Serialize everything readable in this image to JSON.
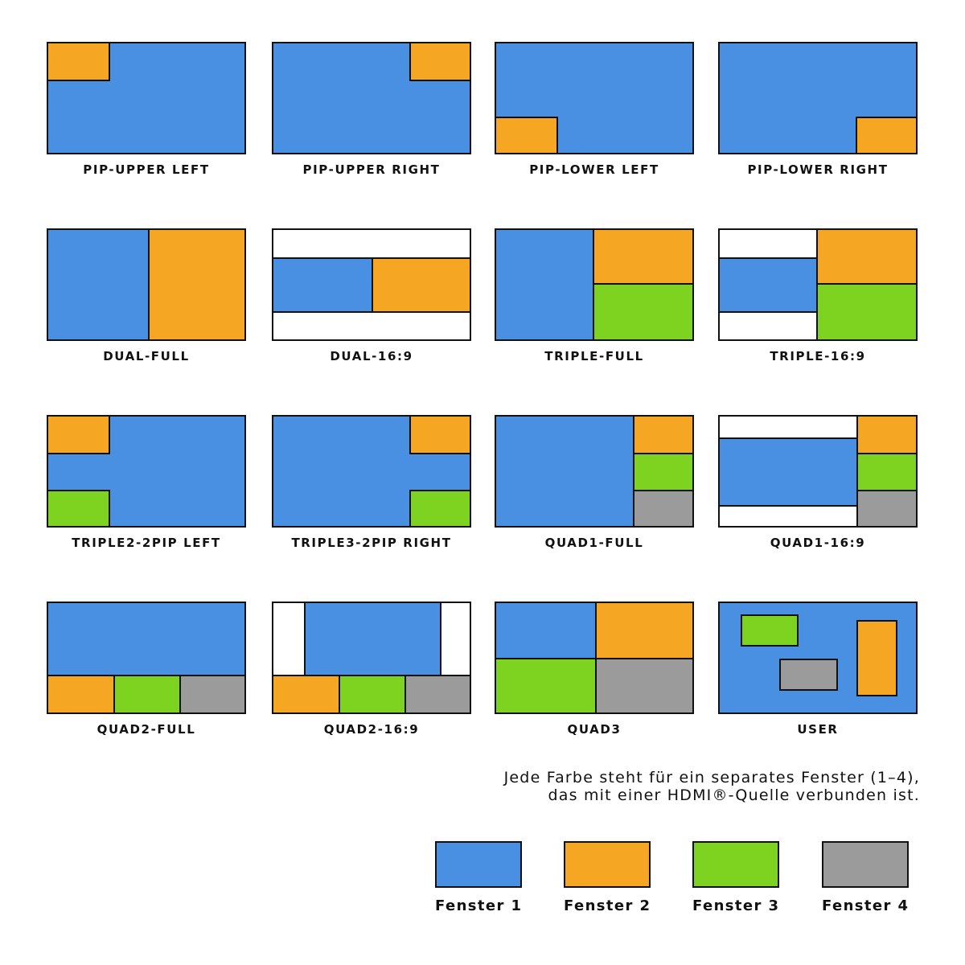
{
  "colors": {
    "window1": "#4a90e2",
    "window2": "#f5a623",
    "window3": "#7ed321",
    "window4": "#9b9b9b"
  },
  "layouts": [
    {
      "label": "PIP-UPPER LEFT"
    },
    {
      "label": "PIP-UPPER RIGHT"
    },
    {
      "label": "PIP-LOWER LEFT"
    },
    {
      "label": "PIP-LOWER RIGHT"
    },
    {
      "label": "DUAL-FULL"
    },
    {
      "label": "DUAL-16:9"
    },
    {
      "label": "TRIPLE-FULL"
    },
    {
      "label": "TRIPLE-16:9"
    },
    {
      "label": "TRIPLE2-2PIP LEFT"
    },
    {
      "label": "TRIPLE3-2PIP RIGHT"
    },
    {
      "label": "QUAD1-FULL"
    },
    {
      "label": "QUAD1-16:9"
    },
    {
      "label": "QUAD2-FULL"
    },
    {
      "label": "QUAD2-16:9"
    },
    {
      "label": "QUAD3"
    },
    {
      "label": "USER"
    }
  ],
  "description": {
    "line1": "Jede Farbe steht für ein separates Fenster (1–4),",
    "line2": "das mit einer HDMI®-Quelle verbunden ist."
  },
  "legend": [
    {
      "label": "Fenster 1"
    },
    {
      "label": "Fenster 2"
    },
    {
      "label": "Fenster 3"
    },
    {
      "label": "Fenster 4"
    }
  ]
}
